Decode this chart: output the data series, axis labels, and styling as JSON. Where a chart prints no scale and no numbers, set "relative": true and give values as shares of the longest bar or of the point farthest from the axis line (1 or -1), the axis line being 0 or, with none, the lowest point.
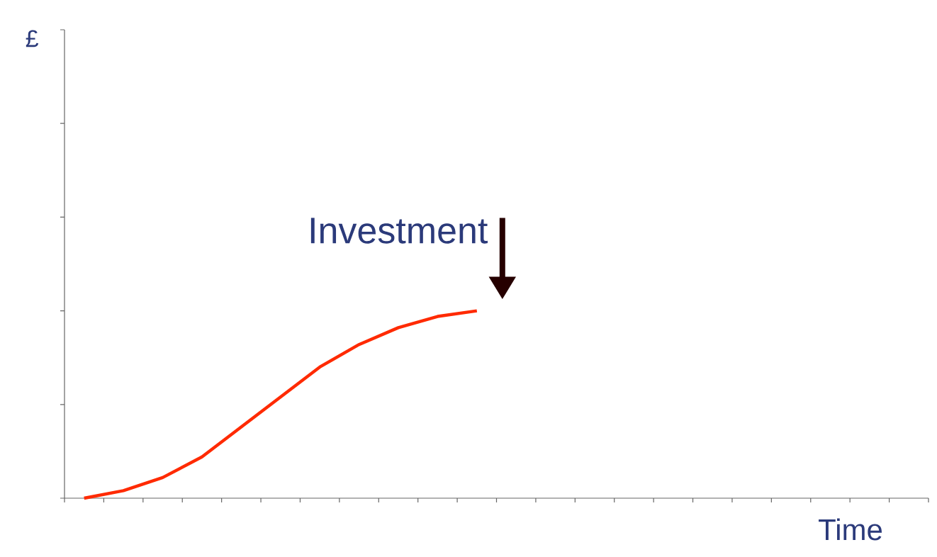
{
  "chart_data": {
    "type": "line",
    "relative": true,
    "xlabel": "Time",
    "categories": [
      null,
      null,
      null,
      null,
      null,
      null,
      null,
      null,
      null,
      null,
      null,
      null,
      null,
      null,
      null,
      null,
      null,
      null,
      null,
      null,
      null,
      null
    ],
    "series": [
      {
        "color": "#ff2a00",
        "values": [
          0,
          0.04,
          0.11,
          0.22,
          0.38,
          0.54,
          0.7,
          0.82,
          0.91,
          0.97,
          1,
          null,
          null,
          null,
          null,
          null,
          null,
          null,
          null,
          null,
          null,
          null
        ]
      }
    ],
    "annotations": [
      "£",
      "Investment"
    ],
    "grid": false,
    "marker": "none",
    "line_style": "solid",
    "tick_labels": false
  }
}
